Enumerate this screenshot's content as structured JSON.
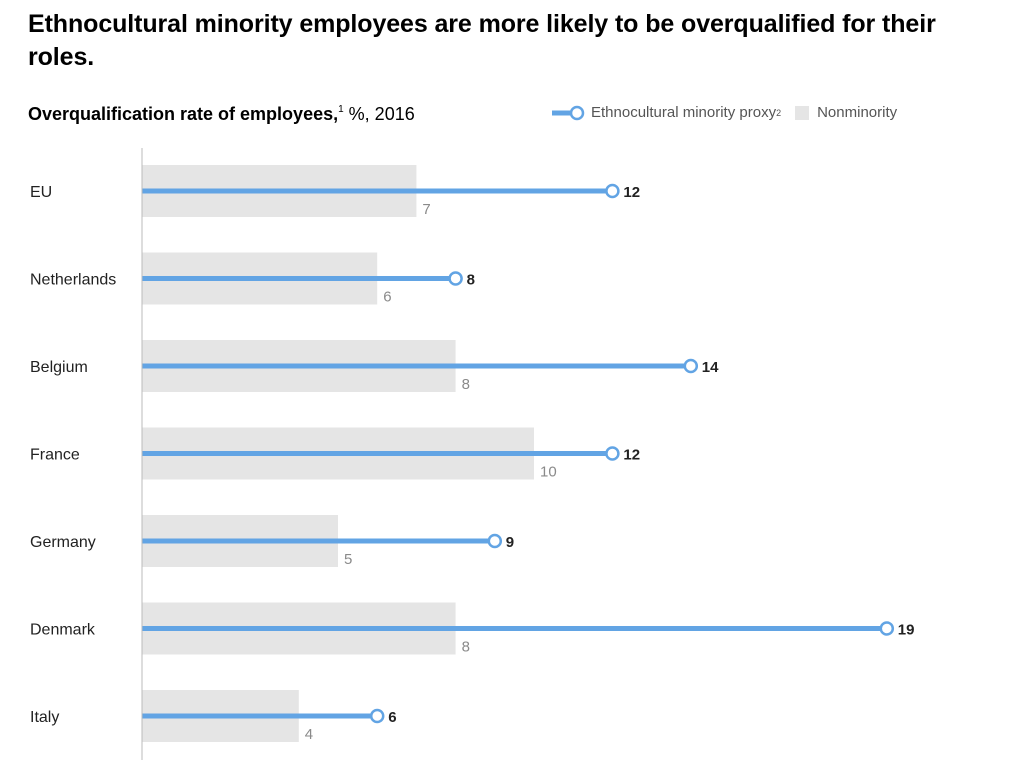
{
  "title": "Ethnocultural minority employees are more likely to be overqualified for their roles.",
  "subtitle": {
    "bold": "Overqualification rate of employees,",
    "footnote": "1",
    "unit": " %, 2016"
  },
  "legend": {
    "minority_label": "Ethnocultural minority proxy",
    "minority_footnote": "2",
    "nonminority_label": "Nonminority"
  },
  "colors": {
    "minority": "#62a4e4",
    "nonminority": "#e5e5e5",
    "axis": "#bbbbbb"
  },
  "chart_data": {
    "type": "bar",
    "title": "Overqualification rate of employees, %, 2016",
    "categories": [
      "EU",
      "Netherlands",
      "Belgium",
      "France",
      "Germany",
      "Denmark",
      "Italy"
    ],
    "series": [
      {
        "name": "Ethnocultural minority proxy",
        "values": [
          12,
          8,
          14,
          12,
          9,
          19,
          6
        ]
      },
      {
        "name": "Nonminority",
        "values": [
          7,
          6,
          8,
          10,
          5,
          8,
          4
        ]
      }
    ],
    "xlim": [
      0,
      20
    ],
    "orientation": "horizontal",
    "grid": false,
    "legend_position": "top-right"
  }
}
